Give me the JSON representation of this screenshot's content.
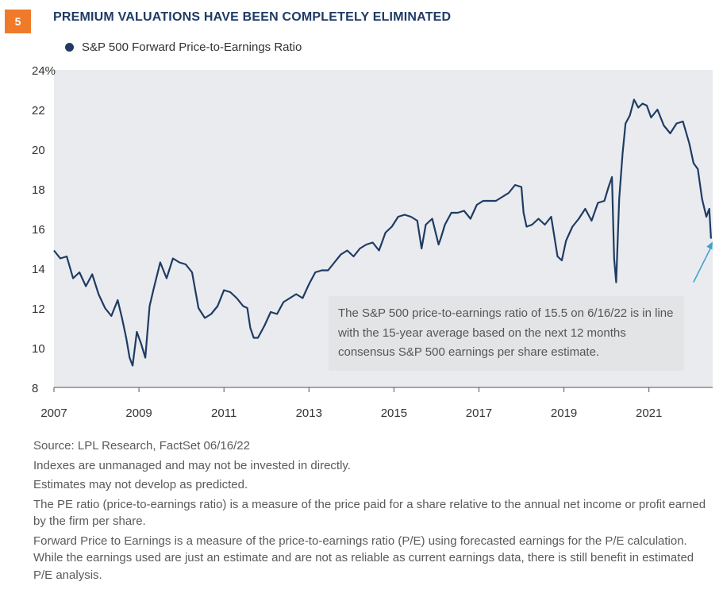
{
  "figure_number": "5",
  "title": "PREMIUM VALUATIONS HAVE BEEN COMPLETELY ELIMINATED",
  "annotation": "The S&P 500 price-to-earnings ratio of 15.5 on 6/16/22 is in line with the 15-year average based on the next 12 months consensus S&P 500 earnings per share estimate.",
  "footnotes": {
    "source": "Source: LPL Research, FactSet  06/16/22",
    "line1": "Indexes are unmanaged and may not be invested in directly.",
    "line2": "Estimates may not develop as predicted.",
    "line3": "The PE ratio (price-to-earnings ratio) is a measure of the price paid for a share relative to the annual net income or profit earned by the firm per share.",
    "line4": "Forward Price to Earnings is a measure of the price-to-earnings ratio (P/E) using forecasted earnings for the P/E calculation. While the earnings used are just an estimate and are not as reliable as current earnings data, there is still benefit in estimated P/E analysis."
  },
  "colors": {
    "series": "#1f3b64",
    "badge": "#ef7b2a",
    "plot_background": "#e9ebee",
    "annotation_box": "#e3e4e6",
    "arrow": "#3aa0cf"
  },
  "chart_data": {
    "type": "line",
    "title": "PREMIUM VALUATIONS HAVE BEEN COMPLETELY ELIMINATED",
    "xlabel": "",
    "ylabel": "",
    "xlim": [
      2007,
      2022.5
    ],
    "ylim": [
      8,
      24
    ],
    "x_ticks": [
      2007,
      2009,
      2011,
      2013,
      2015,
      2017,
      2019,
      2021
    ],
    "x_tick_labels": [
      "2007",
      "2009",
      "2011",
      "2013",
      "2015",
      "2017",
      "2019",
      "2021"
    ],
    "y_ticks": [
      8,
      10,
      12,
      14,
      16,
      18,
      20,
      22,
      24
    ],
    "y_tick_labels": [
      "8",
      "10",
      "12",
      "14",
      "16",
      "18",
      "20",
      "22",
      "24%"
    ],
    "grid": false,
    "legend": "top-left",
    "series": [
      {
        "name": "S&P 500 Forward Price-to-Earnings Ratio",
        "x": [
          2007.0,
          2007.15,
          2007.3,
          2007.45,
          2007.6,
          2007.75,
          2007.9,
          2008.05,
          2008.2,
          2008.35,
          2008.5,
          2008.6,
          2008.7,
          2008.78,
          2008.85,
          2008.95,
          2009.05,
          2009.15,
          2009.25,
          2009.35,
          2009.5,
          2009.65,
          2009.8,
          2009.95,
          2010.1,
          2010.25,
          2010.4,
          2010.55,
          2010.7,
          2010.85,
          2011.0,
          2011.15,
          2011.3,
          2011.45,
          2011.55,
          2011.62,
          2011.7,
          2011.8,
          2011.95,
          2012.1,
          2012.25,
          2012.4,
          2012.55,
          2012.7,
          2012.85,
          2013.0,
          2013.15,
          2013.3,
          2013.45,
          2013.6,
          2013.75,
          2013.9,
          2014.05,
          2014.2,
          2014.35,
          2014.5,
          2014.65,
          2014.8,
          2014.95,
          2015.1,
          2015.25,
          2015.4,
          2015.55,
          2015.65,
          2015.75,
          2015.9,
          2016.05,
          2016.1,
          2016.2,
          2016.35,
          2016.5,
          2016.65,
          2016.8,
          2016.95,
          2017.1,
          2017.25,
          2017.4,
          2017.55,
          2017.7,
          2017.85,
          2018.0,
          2018.05,
          2018.12,
          2018.25,
          2018.4,
          2018.55,
          2018.7,
          2018.85,
          2018.95,
          2019.05,
          2019.2,
          2019.35,
          2019.5,
          2019.65,
          2019.8,
          2019.95,
          2020.05,
          2020.13,
          2020.18,
          2020.23,
          2020.3,
          2020.38,
          2020.45,
          2020.55,
          2020.65,
          2020.75,
          2020.85,
          2020.95,
          2021.05,
          2021.2,
          2021.35,
          2021.5,
          2021.65,
          2021.8,
          2021.95,
          2022.05,
          2022.15,
          2022.25,
          2022.35,
          2022.42,
          2022.46
        ],
        "y": [
          14.9,
          14.5,
          14.6,
          13.5,
          13.8,
          13.1,
          13.7,
          12.7,
          12.0,
          11.6,
          12.4,
          11.5,
          10.5,
          9.5,
          9.1,
          10.8,
          10.2,
          9.5,
          12.1,
          13.0,
          14.3,
          13.5,
          14.5,
          14.3,
          14.2,
          13.8,
          12.0,
          11.5,
          11.7,
          12.1,
          12.9,
          12.8,
          12.5,
          12.1,
          12.0,
          11.0,
          10.5,
          10.5,
          11.1,
          11.8,
          11.7,
          12.3,
          12.5,
          12.7,
          12.5,
          13.2,
          13.8,
          13.9,
          13.9,
          14.3,
          14.7,
          14.9,
          14.6,
          15.0,
          15.2,
          15.3,
          14.9,
          15.8,
          16.1,
          16.6,
          16.7,
          16.6,
          16.4,
          15.0,
          16.2,
          16.5,
          15.2,
          15.5,
          16.2,
          16.8,
          16.8,
          16.9,
          16.5,
          17.2,
          17.4,
          17.4,
          17.4,
          17.6,
          17.8,
          18.2,
          18.1,
          16.8,
          16.1,
          16.2,
          16.5,
          16.2,
          16.6,
          14.6,
          14.4,
          15.4,
          16.1,
          16.5,
          17.0,
          16.4,
          17.3,
          17.4,
          18.1,
          18.6,
          14.5,
          13.3,
          17.5,
          19.8,
          21.3,
          21.7,
          22.5,
          22.1,
          22.3,
          22.2,
          21.6,
          22.0,
          21.2,
          20.8,
          21.3,
          21.4,
          20.3,
          19.3,
          19.0,
          17.5,
          16.6,
          17.0,
          15.5
        ]
      }
    ]
  }
}
